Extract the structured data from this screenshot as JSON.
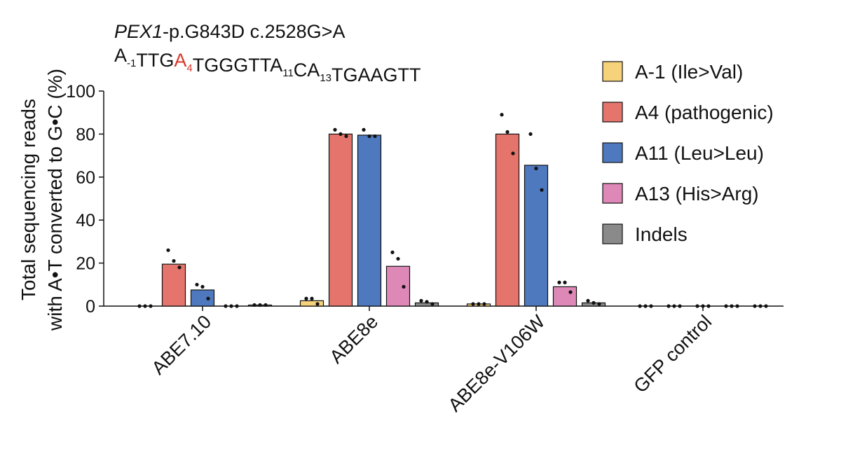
{
  "chart_data": {
    "type": "bar",
    "title": [
      {
        "text": "PEX1",
        "italic": true
      },
      {
        "text": "-p.G843D c.2528G>A"
      }
    ],
    "subtitle": [
      {
        "text": "A",
        "sub": "-1"
      },
      {
        "text": "TTG"
      },
      {
        "text": "A",
        "sub": "4",
        "color": "#d7372b"
      },
      {
        "text": "TGGGTTA",
        "sub": "11"
      },
      {
        "text": "CA",
        "sub": "13"
      },
      {
        "text": "TGAAGTT"
      }
    ],
    "ylabel": [
      "Total sequencing reads",
      "with A•T converted to G•C (%)"
    ],
    "categories": [
      "ABE7.10",
      "ABE8e",
      "ABE8e-V106W",
      "GFP control"
    ],
    "ylim": [
      0,
      100
    ],
    "yticks": [
      0,
      20,
      40,
      60,
      80,
      100
    ],
    "grid": false,
    "legend": "right",
    "series": [
      {
        "name": "A-1 (Ile>Val)",
        "color": "#f6d27a",
        "values": [
          0,
          2.5,
          1,
          0
        ],
        "replicates": [
          [
            0,
            0,
            0
          ],
          [
            3.5,
            3.5,
            1
          ],
          [
            1,
            1,
            1
          ],
          [
            0,
            0,
            0
          ]
        ]
      },
      {
        "name": "A4 (pathogenic)",
        "color": "#e5756c",
        "values": [
          19.5,
          80,
          80,
          0
        ],
        "replicates": [
          [
            26,
            21,
            18
          ],
          [
            82,
            80,
            79
          ],
          [
            89,
            81,
            71
          ],
          [
            0,
            0,
            0
          ]
        ]
      },
      {
        "name": "A11 (Leu>Leu)",
        "color": "#4e79bf",
        "values": [
          7.5,
          79.5,
          65.5,
          0
        ],
        "replicates": [
          [
            10,
            9,
            3.5
          ],
          [
            82,
            79,
            79
          ],
          [
            80,
            64,
            54
          ],
          [
            0,
            0,
            0
          ]
        ]
      },
      {
        "name": "A13 (His>Arg)",
        "color": "#de88b7",
        "values": [
          0,
          18.5,
          9,
          0
        ],
        "replicates": [
          [
            0,
            0,
            0
          ],
          [
            25,
            22,
            9
          ],
          [
            11,
            11,
            6.5
          ],
          [
            0,
            0,
            0
          ]
        ]
      },
      {
        "name": "Indels",
        "color": "#8a8a8a",
        "values": [
          0.5,
          1.5,
          1.5,
          0
        ],
        "replicates": [
          [
            0.5,
            0.5,
            0.5
          ],
          [
            2.5,
            2,
            1
          ],
          [
            2.5,
            1.5,
            1
          ],
          [
            0,
            0,
            0
          ]
        ]
      }
    ]
  }
}
